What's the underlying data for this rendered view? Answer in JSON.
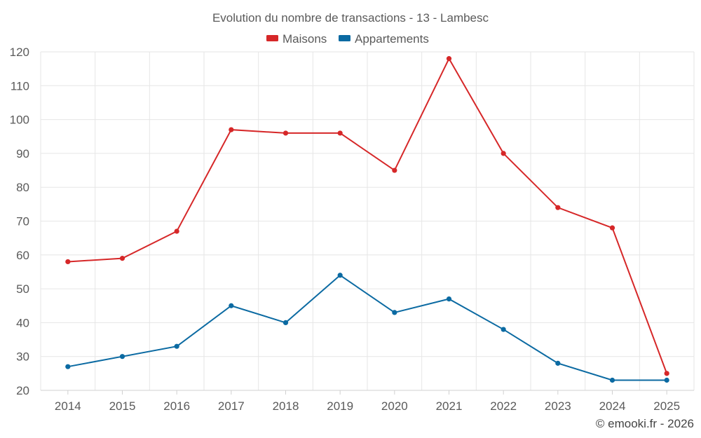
{
  "chart_data": {
    "type": "line",
    "title": "Evolution du nombre de transactions - 13 - Lambesc",
    "xlabel": "",
    "ylabel": "",
    "categories": [
      "2014",
      "2015",
      "2016",
      "2017",
      "2018",
      "2019",
      "2020",
      "2021",
      "2022",
      "2023",
      "2024",
      "2025"
    ],
    "ylim": [
      20,
      120
    ],
    "yticks": [
      20,
      30,
      40,
      50,
      60,
      70,
      80,
      90,
      100,
      110,
      120
    ],
    "grid": true,
    "legend_position": "top-center",
    "series": [
      {
        "name": "Maisons",
        "color": "#d62728",
        "values": [
          58,
          59,
          67,
          97,
          96,
          96,
          85,
          118,
          90,
          74,
          68,
          25
        ]
      },
      {
        "name": "Appartements",
        "color": "#0b6aa2",
        "values": [
          27,
          30,
          33,
          45,
          40,
          54,
          43,
          47,
          38,
          28,
          23,
          23
        ]
      }
    ]
  },
  "credit": "© emooki.fr - 2026"
}
